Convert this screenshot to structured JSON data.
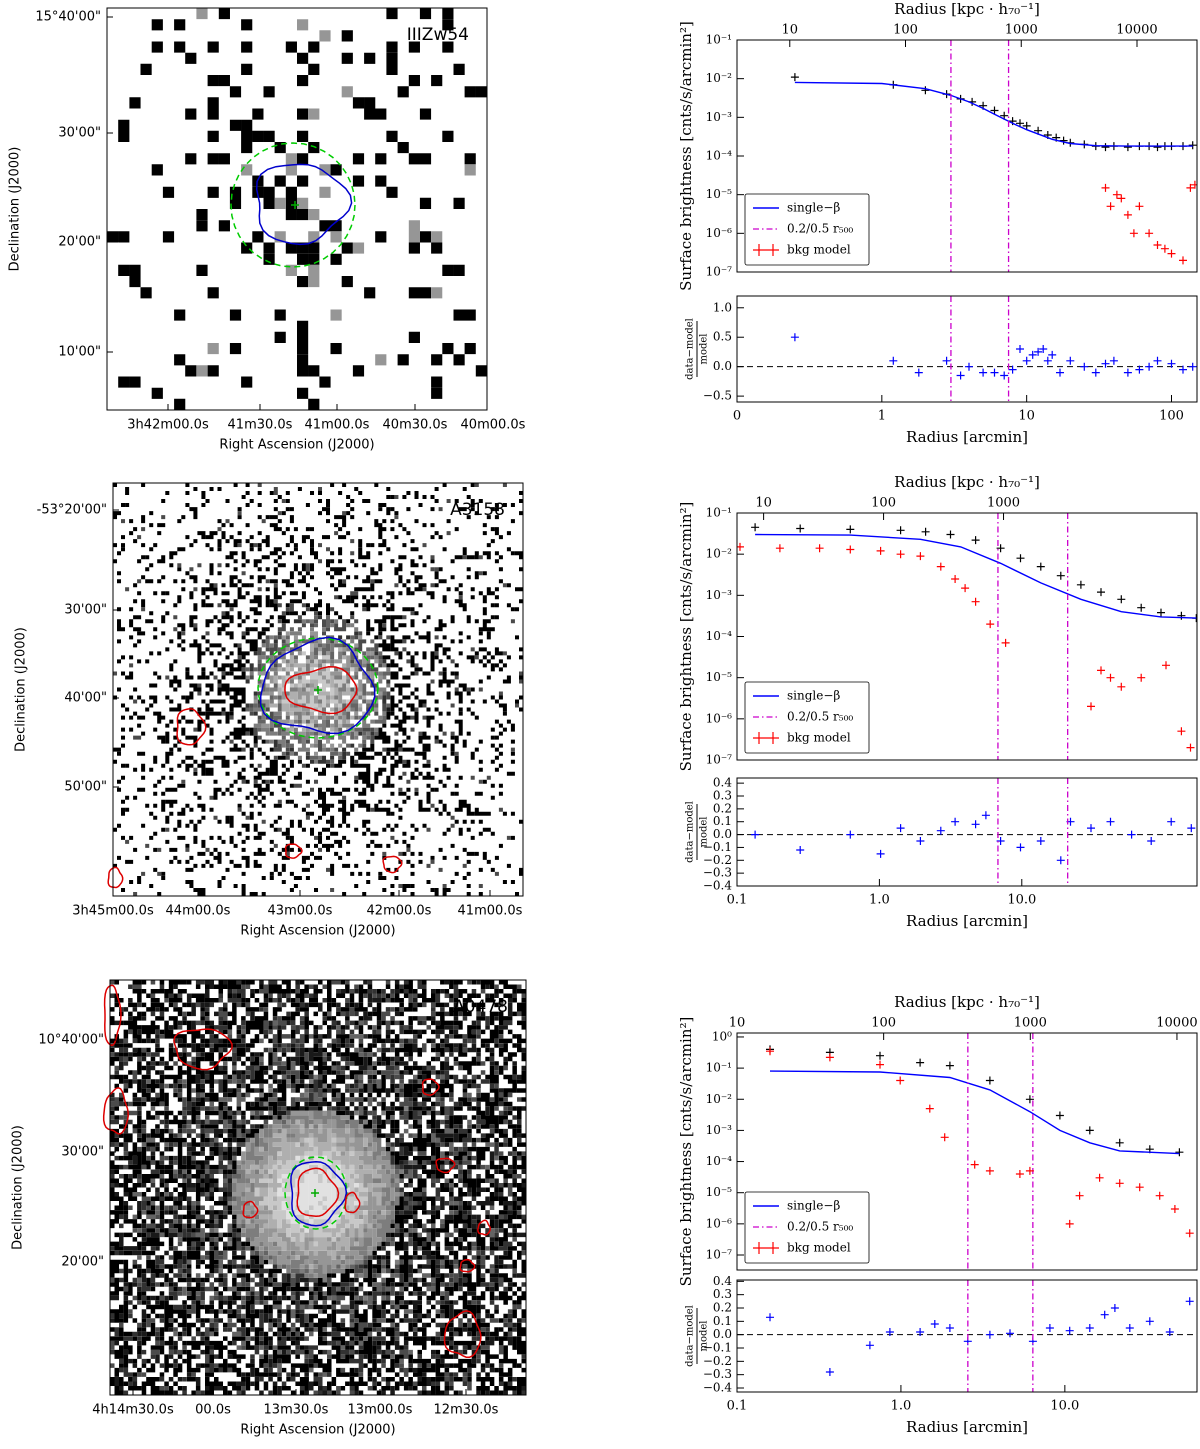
{
  "chart_data": [
    {
      "type": "image",
      "title": "IIIZw54",
      "xlabel": "Right Ascension (J2000)",
      "ylabel": "Declination (J2000)",
      "xticks": [
        "3h42m00.0s",
        "41m30.0s",
        "41m00.0s",
        "40m30.0s",
        "40m00.0s"
      ],
      "yticks": [
        "15°40'00\"",
        "30'00\"",
        "20'00\"",
        "10'00\""
      ]
    },
    {
      "type": "line",
      "xscale": "symlog",
      "linthresh": 1,
      "xlim": [
        0,
        150
      ],
      "yscale": "log",
      "ylim": [
        1e-07,
        0.1
      ],
      "yticks": [
        {
          "value": 1e-07,
          "label": "10⁻⁷"
        },
        {
          "value": 1e-06,
          "label": "10⁻⁶"
        },
        {
          "value": 1e-05,
          "label": "10⁻⁵"
        },
        {
          "value": 0.0001,
          "label": "10⁻⁴"
        },
        {
          "value": 0.001,
          "label": "10⁻³"
        },
        {
          "value": 0.01,
          "label": "10⁻²"
        },
        {
          "value": 0.1,
          "label": "10⁻¹"
        }
      ],
      "ylabel": "Surface brightness [cnts/s/arcmin²]",
      "x2label": "Radius [kpc · h₇₀⁻¹]",
      "x2scale": "log",
      "x2lim": [
        3.5,
        33000
      ],
      "x2ticks": [
        10,
        100,
        1000,
        10000
      ],
      "legend": "lower left",
      "series": [
        {
          "color": "#000000",
          "style": "errorbar",
          "x": [
            0.4,
            1.2,
            2.0,
            2.8,
            3.5,
            4.2,
            5,
            6,
            7,
            8,
            9,
            10,
            12,
            14,
            16,
            18,
            20,
            25,
            30,
            35,
            40,
            50,
            60,
            70,
            80,
            90,
            100,
            120,
            140
          ],
          "values": [
            0.011,
            0.007,
            0.005,
            0.004,
            0.003,
            0.0025,
            0.002,
            0.0015,
            0.0011,
            0.0008,
            0.0007,
            0.0006,
            0.00045,
            0.00035,
            0.0003,
            0.00025,
            0.00022,
            0.0002,
            0.00018,
            0.00017,
            0.00018,
            0.00017,
            0.00018,
            0.00018,
            0.00017,
            0.00018,
            0.00018,
            0.00018,
            0.00019
          ]
        },
        {
          "name": "single−β",
          "color": "#0000ff",
          "style": "line",
          "x": [
            0.4,
            1,
            2,
            3,
            4,
            5,
            6,
            8,
            10,
            15,
            20,
            30,
            50,
            80,
            140
          ],
          "values": [
            0.008,
            0.0075,
            0.0055,
            0.0037,
            0.0025,
            0.0017,
            0.0012,
            0.0007,
            0.00048,
            0.00027,
            0.00021,
            0.000185,
            0.00018,
            0.00018,
            0.00018
          ]
        },
        {
          "name": "0.2/0.5 r₅₀₀",
          "color": "#cc00cc",
          "style": "vline",
          "x": [
            3,
            7.5
          ]
        },
        {
          "name": "bkg model",
          "color": "#ff0000",
          "style": "errorbar",
          "x": [
            35,
            38,
            42,
            45,
            50,
            55,
            60,
            70,
            80,
            90,
            100,
            120,
            135,
            145
          ],
          "values": [
            1.5e-05,
            5e-06,
            1e-05,
            8e-06,
            3e-06,
            1e-06,
            5e-06,
            1e-06,
            5e-07,
            4e-07,
            3e-07,
            2e-07,
            1.5e-05,
            1.8e-05
          ]
        }
      ]
    },
    {
      "type": "scatter",
      "xscale": "symlog",
      "linthresh": 1,
      "xlim": [
        0,
        150
      ],
      "xticks": [
        0,
        1,
        10,
        100
      ],
      "xlabel": "Radius [arcmin]",
      "ylim": [
        -0.6,
        1.2
      ],
      "yticks": [
        {
          "value": -0.5,
          "label": "−0.5"
        },
        {
          "value": 0,
          "label": "0.0"
        },
        0.5,
        {
          "value": 1,
          "label": "1.0"
        }
      ],
      "ylabel": [
        "data−model",
        "model"
      ],
      "series": [
        {
          "color": "#0000ff",
          "style": "errorbar",
          "x": [
            0.4,
            1.2,
            1.8,
            2.8,
            3.5,
            4,
            5,
            6,
            7,
            8,
            9,
            10,
            11,
            12,
            13,
            14,
            15,
            17,
            20,
            25,
            30,
            35,
            40,
            50,
            60,
            70,
            80,
            100,
            120,
            140
          ],
          "values": [
            0.5,
            0.1,
            -0.1,
            0.1,
            -0.15,
            0,
            -0.1,
            -0.1,
            -0.15,
            -0.05,
            0.3,
            0.1,
            0.2,
            0.25,
            0.3,
            0.1,
            0.2,
            -0.1,
            0.1,
            0,
            -0.1,
            0.05,
            0.1,
            -0.1,
            -0.05,
            0,
            0.1,
            0.05,
            -0.05,
            0
          ]
        },
        {
          "color": "#cc00cc",
          "style": "vline",
          "x": [
            3,
            7.5
          ]
        }
      ]
    },
    {
      "type": "image",
      "title": "A3158",
      "xlabel": "Right Ascension (J2000)",
      "ylabel": "Declination (J2000)",
      "xticks": [
        "3h45m00.0s",
        "44m00.0s",
        "43m00.0s",
        "42m00.0s",
        "41m00.0s"
      ],
      "yticks": [
        "-53°20'00\"",
        "30'00\"",
        "40'00\"",
        "50'00\""
      ]
    },
    {
      "type": "line",
      "xscale": "log",
      "xlim": [
        0.1,
        170
      ],
      "yscale": "log",
      "ylim": [
        1e-07,
        0.1
      ],
      "yticks": [
        {
          "value": 1e-07,
          "label": "10⁻⁷"
        },
        {
          "value": 1e-06,
          "label": "10⁻⁶"
        },
        {
          "value": 1e-05,
          "label": "10⁻⁵"
        },
        {
          "value": 0.0001,
          "label": "10⁻⁴"
        },
        {
          "value": 0.001,
          "label": "10⁻³"
        },
        {
          "value": 0.01,
          "label": "10⁻²"
        },
        {
          "value": 0.1,
          "label": "10⁻¹"
        }
      ],
      "ylabel": "Surface brightness [cnts/s/arcmin²]",
      "x2label": "Radius [kpc · h₇₀⁻¹]",
      "x2scale": "log",
      "x2lim": [
        6,
        41000
      ],
      "x2ticks": [
        10,
        100,
        1000
      ],
      "legend": "lower left",
      "series": [
        {
          "color": "#000000",
          "style": "errorbar",
          "x": [
            0.134,
            0.278,
            0.625,
            1.41,
            2.11,
            3.16,
            4.74,
            7.1,
            9.8,
            13.6,
            18.8,
            26,
            36,
            50,
            69,
            95,
            132,
            168
          ],
          "values": [
            0.045,
            0.042,
            0.04,
            0.038,
            0.035,
            0.03,
            0.022,
            0.014,
            0.008,
            0.005,
            0.003,
            0.0018,
            0.0012,
            0.0008,
            0.0005,
            0.00038,
            0.00032,
            0.00028
          ]
        },
        {
          "name": "single−β",
          "color": "#0000ff",
          "style": "line",
          "x": [
            0.134,
            0.625,
            1.94,
            3.73,
            7.1,
            13.6,
            26,
            50,
            95,
            168
          ],
          "values": [
            0.03,
            0.029,
            0.023,
            0.015,
            0.006,
            0.002,
            0.0008,
            0.0004,
            0.0003,
            0.00028
          ]
        },
        {
          "name": "0.2/0.5 r₅₀₀",
          "color": "#cc00cc",
          "style": "vline",
          "x": [
            6.8,
            21
          ]
        },
        {
          "name": "bkg model",
          "color": "#ff0000",
          "style": "errorbar",
          "x": [
            0.105,
            0.2,
            0.38,
            0.625,
            1.02,
            1.41,
            1.94,
            2.7,
            3.4,
            4.0,
            4.74,
            6.0,
            7.7,
            30.6,
            36,
            42,
            50,
            69,
            103,
            132,
            153
          ],
          "values": [
            0.015,
            0.014,
            0.014,
            0.013,
            0.012,
            0.01,
            0.009,
            0.005,
            0.0025,
            0.0015,
            0.0007,
            0.0002,
            7e-05,
            2e-06,
            1.5e-05,
            1e-05,
            6e-06,
            1e-05,
            2e-05,
            5e-07,
            2e-07
          ]
        }
      ]
    },
    {
      "type": "scatter",
      "xscale": "log",
      "xlim": [
        0.1,
        170
      ],
      "xticks": [
        0.1,
        {
          "value": 1,
          "label": "1.0"
        },
        {
          "value": 10,
          "label": "10.0"
        }
      ],
      "xlabel": "Radius [arcmin]",
      "ylim": [
        -0.4,
        0.44
      ],
      "yticks": [
        {
          "value": -0.4,
          "label": "−0.4"
        },
        {
          "value": -0.3,
          "label": "−0.3"
        },
        {
          "value": -0.2,
          "label": "−0.2"
        },
        {
          "value": -0.1,
          "label": "−0.1"
        },
        {
          "value": 0,
          "label": "0.0"
        },
        0.1,
        0.2,
        0.3,
        0.4
      ],
      "ylabel": [
        "data−model",
        "model"
      ],
      "series": [
        {
          "color": "#0000ff",
          "style": "errorbar",
          "x": [
            0.134,
            0.278,
            0.625,
            1.02,
            1.41,
            1.94,
            2.7,
            3.4,
            4.74,
            5.6,
            7.1,
            9.8,
            13.6,
            18.8,
            22,
            30.6,
            42,
            59,
            81,
            112,
            155
          ],
          "values": [
            0,
            -0.12,
            0,
            -0.15,
            0.05,
            -0.05,
            0.03,
            0.1,
            0.08,
            0.15,
            -0.05,
            -0.1,
            -0.05,
            -0.2,
            0.1,
            0.05,
            0.1,
            0,
            -0.05,
            0.1,
            0.05
          ]
        },
        {
          "color": "#cc00cc",
          "style": "vline",
          "x": [
            6.8,
            21
          ]
        }
      ]
    },
    {
      "type": "image",
      "title": "A0478",
      "xlabel": "Right Ascension (J2000)",
      "ylabel": "Declination (J2000)",
      "xticks": [
        "4h14m30.0s",
        "00.0s",
        "13m30.0s",
        "13m00.0s",
        "12m30.0s"
      ],
      "yticks": [
        "10°40'00\"",
        "30'00\"",
        "20'00\""
      ]
    },
    {
      "type": "line",
      "xscale": "log",
      "xlim": [
        0.1,
        64
      ],
      "yscale": "log",
      "ylim": [
        3.3e-08,
        1.34
      ],
      "yticks": [
        {
          "value": 1e-07,
          "label": "10⁻⁷"
        },
        {
          "value": 1e-06,
          "label": "10⁻⁶"
        },
        {
          "value": 1e-05,
          "label": "10⁻⁵"
        },
        {
          "value": 0.0001,
          "label": "10⁻⁴"
        },
        {
          "value": 0.001,
          "label": "10⁻³"
        },
        {
          "value": 0.01,
          "label": "10⁻²"
        },
        {
          "value": 0.1,
          "label": "10⁻¹"
        },
        {
          "value": 1,
          "label": "10⁰"
        }
      ],
      "ylabel": "Surface brightness [cnts/s/arcmin²]",
      "x2label": "Radius [kpc · h₇₀⁻¹]",
      "x2scale": "log",
      "x2lim": [
        10,
        13700
      ],
      "x2ticks": [
        10,
        100,
        1000,
        10000
      ],
      "legend": "lower left",
      "series": [
        {
          "color": "#000000",
          "style": "errorbar",
          "x": [
            0.159,
            0.369,
            0.745,
            1.31,
            1.99,
            3.49,
            6.12,
            9.33,
            14.2,
            21.6,
            33,
            50
          ],
          "values": [
            0.4,
            0.32,
            0.25,
            0.15,
            0.12,
            0.04,
            0.01,
            0.003,
            0.001,
            0.0004,
            0.00025,
            0.0002
          ]
        },
        {
          "name": "single−β",
          "color": "#0000ff",
          "style": "line",
          "x": [
            0.159,
            0.745,
            1.99,
            3.49,
            6.12,
            9.33,
            14.2,
            21.6,
            50
          ],
          "values": [
            0.08,
            0.075,
            0.05,
            0.02,
            0.004,
            0.001,
            0.0004,
            0.00022,
            0.00018
          ]
        },
        {
          "name": "0.2/0.5 r₅₀₀",
          "color": "#cc00cc",
          "style": "vline",
          "x": [
            2.56,
            6.38
          ]
        },
        {
          "name": "bkg model",
          "color": "#ff0000",
          "style": "errorbar",
          "x": [
            0.159,
            0.369,
            0.745,
            0.99,
            1.5,
            1.85,
            2.82,
            3.49,
            5.32,
            6.12,
            10.7,
            12.3,
            16.3,
            21.6,
            28.6,
            37.9,
            46.9,
            57.8
          ],
          "values": [
            0.35,
            0.22,
            0.13,
            0.04,
            0.005,
            0.0006,
            8e-05,
            5e-05,
            4e-05,
            5e-05,
            1e-06,
            8e-06,
            3e-05,
            2e-05,
            1.5e-05,
            8e-06,
            3e-06,
            5e-07
          ]
        }
      ]
    },
    {
      "type": "scatter",
      "xscale": "log",
      "xlim": [
        0.1,
        64
      ],
      "xticks": [
        0.1,
        {
          "value": 1,
          "label": "1.0"
        },
        {
          "value": 10,
          "label": "10.0"
        }
      ],
      "xlabel": "Radius [arcmin]",
      "ylim": [
        -0.43,
        0.41
      ],
      "yticks": [
        {
          "value": -0.4,
          "label": "−0.4"
        },
        {
          "value": -0.3,
          "label": "−0.3"
        },
        {
          "value": -0.2,
          "label": "−0.2"
        },
        {
          "value": -0.1,
          "label": "−0.1"
        },
        {
          "value": 0,
          "label": "0.0"
        },
        0.1,
        0.2,
        0.3,
        0.4
      ],
      "ylabel": [
        "data−model",
        "model"
      ],
      "series": [
        {
          "color": "#0000ff",
          "style": "errorbar",
          "x": [
            0.159,
            0.369,
            0.647,
            0.857,
            1.31,
            1.61,
            1.99,
            2.56,
            3.49,
            4.63,
            6.38,
            8.11,
            10.7,
            14.2,
            17.5,
            20.2,
            24.9,
            33,
            43.7,
            57.8
          ],
          "values": [
            0.13,
            -0.28,
            -0.08,
            0.02,
            0.02,
            0.08,
            0.05,
            -0.05,
            0,
            0.01,
            -0.05,
            0.05,
            0.03,
            0.05,
            0.15,
            0.2,
            0.05,
            0.1,
            0.02,
            0.25
          ]
        },
        {
          "color": "#cc00cc",
          "style": "vline",
          "x": [
            2.56,
            6.38
          ]
        }
      ]
    }
  ]
}
